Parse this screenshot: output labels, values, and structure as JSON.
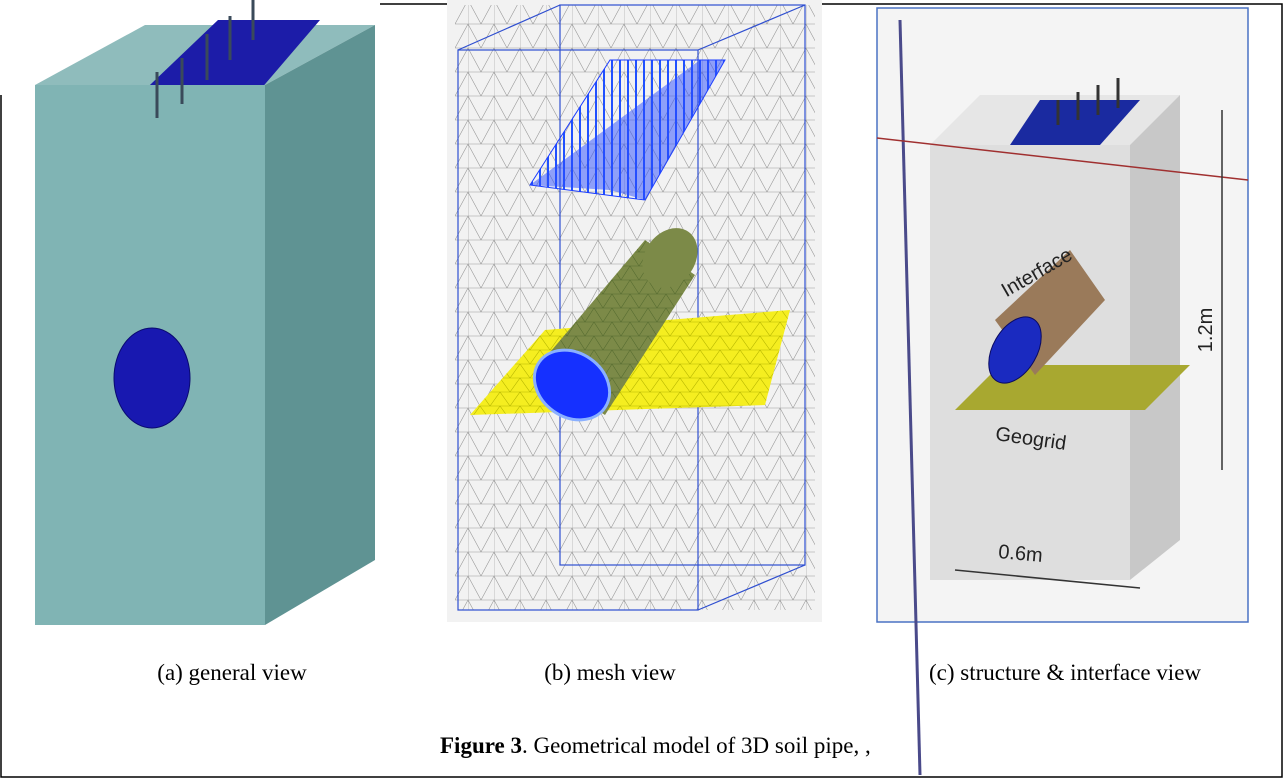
{
  "panels": [
    {
      "caption": "(a) general view"
    },
    {
      "caption": "(b) mesh view"
    },
    {
      "caption": "(c) structure & interface view",
      "annotations": [
        "Interface",
        "1.2m",
        "Geogrid",
        "0.6m"
      ]
    }
  ],
  "figure": {
    "label": "Figure 3",
    "caption": ". Geometrical model of 3D soil pipe, ,"
  }
}
